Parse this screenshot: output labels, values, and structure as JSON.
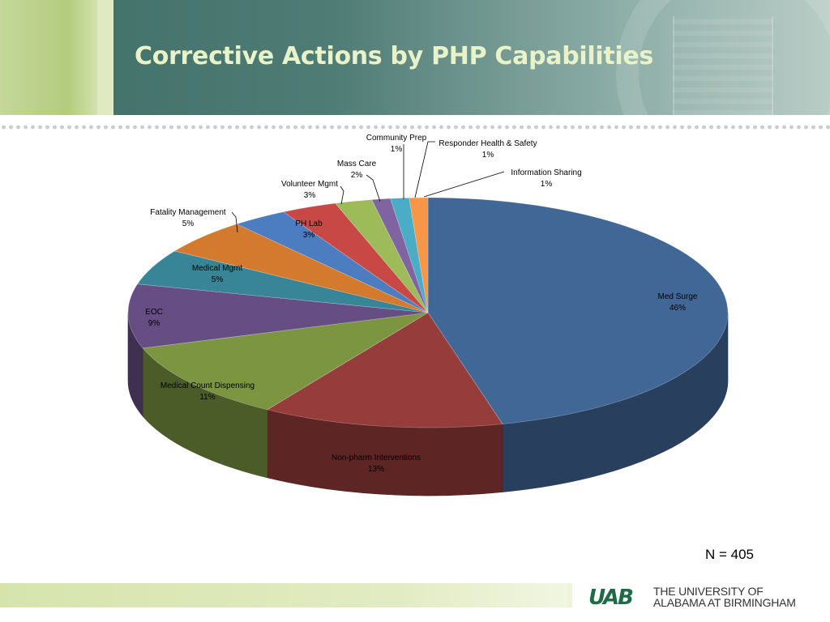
{
  "slide": {
    "title": "Corrective Actions by PHP Capabilities",
    "note": "N = 405",
    "logo": {
      "mark": "UAB",
      "line1": "THE UNIVERSITY OF",
      "line2": "ALABAMA AT BIRMINGHAM",
      "color": "#1e6b45"
    }
  },
  "chart_data": {
    "type": "pie",
    "style": "3d",
    "start": "12 o'clock, clockwise",
    "slices": [
      {
        "label": "Med Surge",
        "pct": "46%",
        "value": 46,
        "color": "#416796"
      },
      {
        "label": "Non-pharm Interventions",
        "pct": "13%",
        "value": 13,
        "color": "#963c3a"
      },
      {
        "label": "Medical Count Dispensing",
        "pct": "11%",
        "value": 11,
        "color": "#7b9541"
      },
      {
        "label": "EOC",
        "pct": "9%",
        "value": 9,
        "color": "#664e85"
      },
      {
        "label": "Medical Mgmt",
        "pct": "5%",
        "value": 5,
        "color": "#388597"
      },
      {
        "label": "Fatality Management",
        "pct": "5%",
        "value": 5,
        "color": "#d47a2f"
      },
      {
        "label": "PH Lab",
        "pct": "3%",
        "value": 3,
        "color": "#4b7dc0"
      },
      {
        "label": "Volunteer Mgmt",
        "pct": "3%",
        "value": 3,
        "color": "#c74845"
      },
      {
        "label": "Mass Care",
        "pct": "2%",
        "value": 2,
        "color": "#9dbb59"
      },
      {
        "label": "Community Prep",
        "pct": "1%",
        "value": 1,
        "color": "#8064a2"
      },
      {
        "label": "Responder Health & Safety",
        "pct": "1%",
        "value": 1,
        "color": "#4bacc6"
      },
      {
        "label": "Information Sharing",
        "pct": "1%",
        "value": 1,
        "color": "#f79646"
      }
    ]
  }
}
